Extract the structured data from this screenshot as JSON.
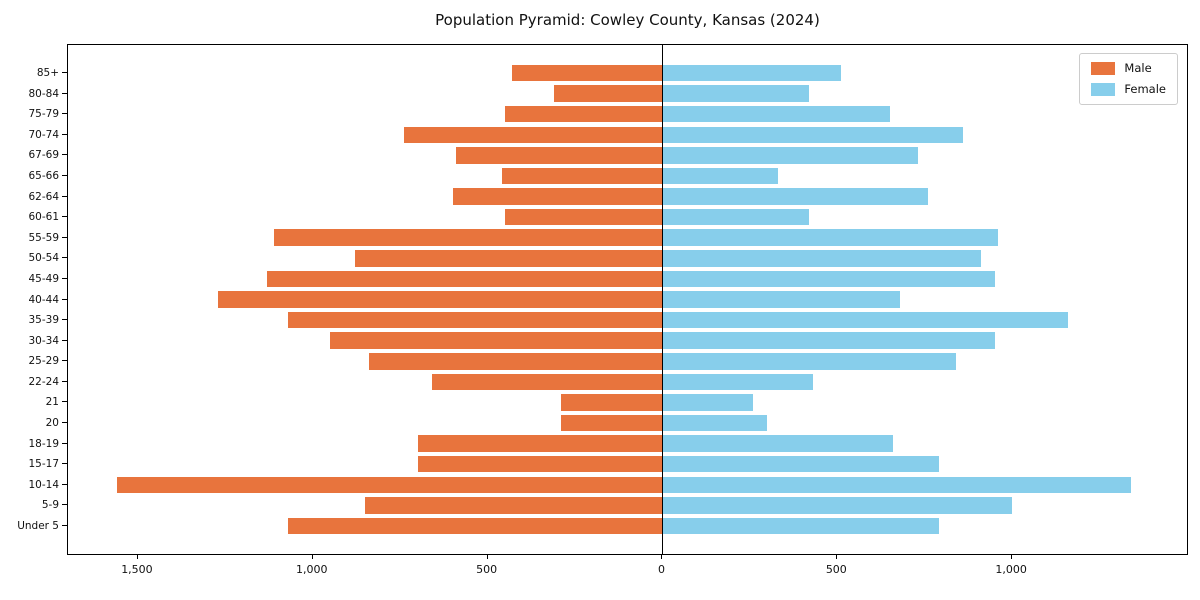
{
  "title": "Population Pyramid: Cowley County, Kansas (2024)",
  "colors": {
    "male": "#e8743d",
    "female": "#87ceeb",
    "axis": "#000000",
    "background": "#ffffff",
    "legend_border": "#cccccc"
  },
  "legend": {
    "position": "upper-right",
    "items": [
      {
        "label": "Male",
        "color": "#e8743d"
      },
      {
        "label": "Female",
        "color": "#87ceeb"
      }
    ]
  },
  "chart_data": {
    "type": "bar",
    "variant": "population-pyramid",
    "orientation": "horizontal",
    "title": "Population Pyramid: Cowley County, Kansas (2024)",
    "xlabel": "",
    "ylabel": "",
    "grid": false,
    "zero_line": true,
    "xlim": [
      -1700,
      1500
    ],
    "categories_top_to_bottom": [
      "85+",
      "80-84",
      "75-79",
      "70-74",
      "67-69",
      "65-66",
      "62-64",
      "60-61",
      "55-59",
      "50-54",
      "45-49",
      "40-44",
      "35-39",
      "30-34",
      "25-29",
      "22-24",
      "21",
      "20",
      "18-19",
      "15-17",
      "10-14",
      "5-9",
      "Under 5"
    ],
    "series": [
      {
        "name": "Male",
        "side": "left",
        "color": "#e8743d",
        "values": [
          430,
          310,
          450,
          740,
          590,
          460,
          600,
          450,
          1110,
          880,
          1130,
          1270,
          1070,
          950,
          840,
          660,
          290,
          290,
          700,
          700,
          1560,
          850,
          1070
        ]
      },
      {
        "name": "Female",
        "side": "right",
        "color": "#87ceeb",
        "values": [
          510,
          420,
          650,
          860,
          730,
          330,
          760,
          420,
          960,
          910,
          950,
          680,
          1160,
          950,
          840,
          430,
          260,
          300,
          660,
          790,
          1340,
          1000,
          790
        ]
      }
    ],
    "x_ticks": [
      {
        "value": -1500,
        "label": "1,500"
      },
      {
        "value": -1000,
        "label": "1,000"
      },
      {
        "value": -500,
        "label": "500"
      },
      {
        "value": 0,
        "label": "0"
      },
      {
        "value": 500,
        "label": "500"
      },
      {
        "value": 1000,
        "label": "1,000"
      }
    ]
  }
}
